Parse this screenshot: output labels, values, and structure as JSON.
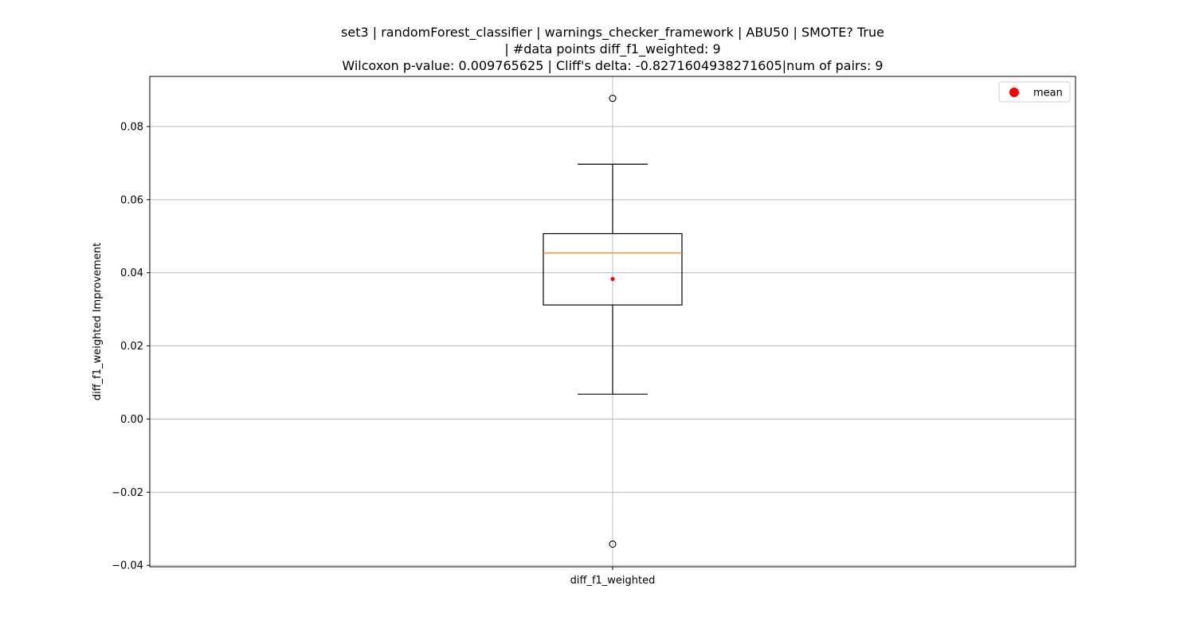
{
  "chart_data": {
    "type": "box",
    "title_lines": [
      "set3 | randomForest_classifier | warnings_checker_framework | ABU50 | SMOTE? True",
      "| #data points diff_f1_weighted: 9",
      "Wilcoxon p-value: 0.009765625 | Cliff's delta: -0.8271604938271605|num of pairs: 9"
    ],
    "xlabel": "",
    "ylabel": "diff_f1_weighted Improvement",
    "categories": [
      "diff_f1_weighted"
    ],
    "ylim": [
      -0.0404,
      0.0937
    ],
    "yticks": [
      -0.04,
      -0.02,
      0.0,
      0.02,
      0.04,
      0.06,
      0.08
    ],
    "ytick_labels": [
      "−0.04",
      "−0.02",
      "0.00",
      "0.02",
      "0.04",
      "0.06",
      "0.08"
    ],
    "grid": true,
    "box": {
      "whisker_low": 0.0068,
      "q1": 0.0312,
      "median": 0.0454,
      "q3": 0.0507,
      "whisker_high": 0.0697,
      "mean": 0.0383,
      "outliers": [
        0.0877,
        -0.0342
      ]
    },
    "legend": {
      "position": "top-right",
      "entries": [
        {
          "label": "mean",
          "color": "#ff0000",
          "marker": "circle"
        }
      ]
    },
    "colors": {
      "median": "#ff7f0e",
      "mean": "#ff0000",
      "box": "#000000",
      "grid": "#b0b0b0"
    }
  }
}
